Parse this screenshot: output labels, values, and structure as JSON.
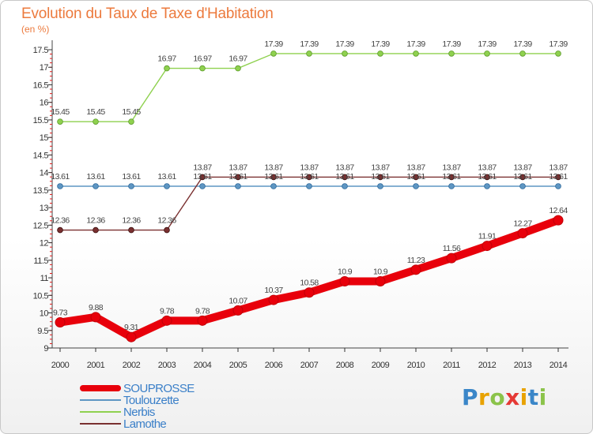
{
  "header": {
    "title": "Evolution du Taux de Taxe d'Habitation",
    "subtitle": "(en %)"
  },
  "chart_data": {
    "type": "line",
    "title": "Evolution du Taux de Taxe d'Habitation",
    "ylabel": "(en %)",
    "xlabel": "",
    "categories": [
      "2000",
      "2001",
      "2002",
      "2003",
      "2004",
      "2005",
      "2006",
      "2007",
      "2008",
      "2009",
      "2010",
      "2011",
      "2012",
      "2013",
      "2014"
    ],
    "ylim": [
      9,
      17.5
    ],
    "yticks": [
      9,
      9.5,
      10,
      10.5,
      11,
      11.5,
      12,
      12.5,
      13,
      13.5,
      14,
      14.5,
      15,
      15.5,
      16,
      16.5,
      17,
      17.5
    ],
    "grid": false,
    "legend_position": "bottom-left",
    "series": [
      {
        "name": "SOUPROSSE",
        "color": "#e8000b",
        "emphasis": true,
        "values": [
          9.73,
          9.88,
          9.31,
          9.78,
          9.78,
          10.07,
          10.37,
          10.58,
          10.9,
          10.9,
          11.23,
          11.56,
          11.91,
          12.27,
          12.64
        ],
        "labels": [
          "9.73",
          "9.88",
          "9.31",
          "9.78",
          "9.78",
          "10.07",
          "10.37",
          "10.58",
          "10.9",
          "10.9",
          "11.23",
          "11.56",
          "11.91",
          "12.27",
          "12.64"
        ]
      },
      {
        "name": "Toulouzette",
        "color": "#5e96c3",
        "emphasis": false,
        "values": [
          13.61,
          13.61,
          13.61,
          13.61,
          13.61,
          13.61,
          13.61,
          13.61,
          13.61,
          13.61,
          13.61,
          13.61,
          13.61,
          13.61,
          13.61
        ],
        "labels": [
          "13.61",
          "13.61",
          "13.61",
          "13.61",
          "13.61",
          "13.61",
          "13.61",
          "13.61",
          "13.61",
          "13.61",
          "13.61",
          "13.61",
          "13.61",
          "13.61",
          "13.61"
        ]
      },
      {
        "name": "Nerbis",
        "color": "#8fd14f",
        "emphasis": false,
        "values": [
          15.45,
          15.45,
          15.45,
          16.97,
          16.97,
          16.97,
          17.39,
          17.39,
          17.39,
          17.39,
          17.39,
          17.39,
          17.39,
          17.39,
          17.39
        ],
        "labels": [
          "15.45",
          "15.45",
          "15.45",
          "16.97",
          "16.97",
          "16.97",
          "17.39",
          "17.39",
          "17.39",
          "17.39",
          "17.39",
          "17.39",
          "17.39",
          "17.39",
          "17.39"
        ]
      },
      {
        "name": "Lamothe",
        "color": "#7a3030",
        "emphasis": false,
        "values": [
          12.36,
          12.36,
          12.36,
          12.36,
          13.87,
          13.87,
          13.87,
          13.87,
          13.87,
          13.87,
          13.87,
          13.87,
          13.87,
          13.87,
          13.87
        ],
        "labels": [
          "12.36",
          "12.36",
          "12.36",
          "12.36",
          "13.87",
          "13.87",
          "13.87",
          "13.87",
          "13.87",
          "13.87",
          "13.87",
          "13.87",
          "13.87",
          "13.87",
          "13.87"
        ]
      }
    ]
  },
  "logo": {
    "text": "Proxiti",
    "letter_colors": [
      "#3a86c8",
      "#e8a200",
      "#8bc34a",
      "#e53935",
      "#e8a200",
      "#3a86c8",
      "#8bc34a"
    ]
  }
}
